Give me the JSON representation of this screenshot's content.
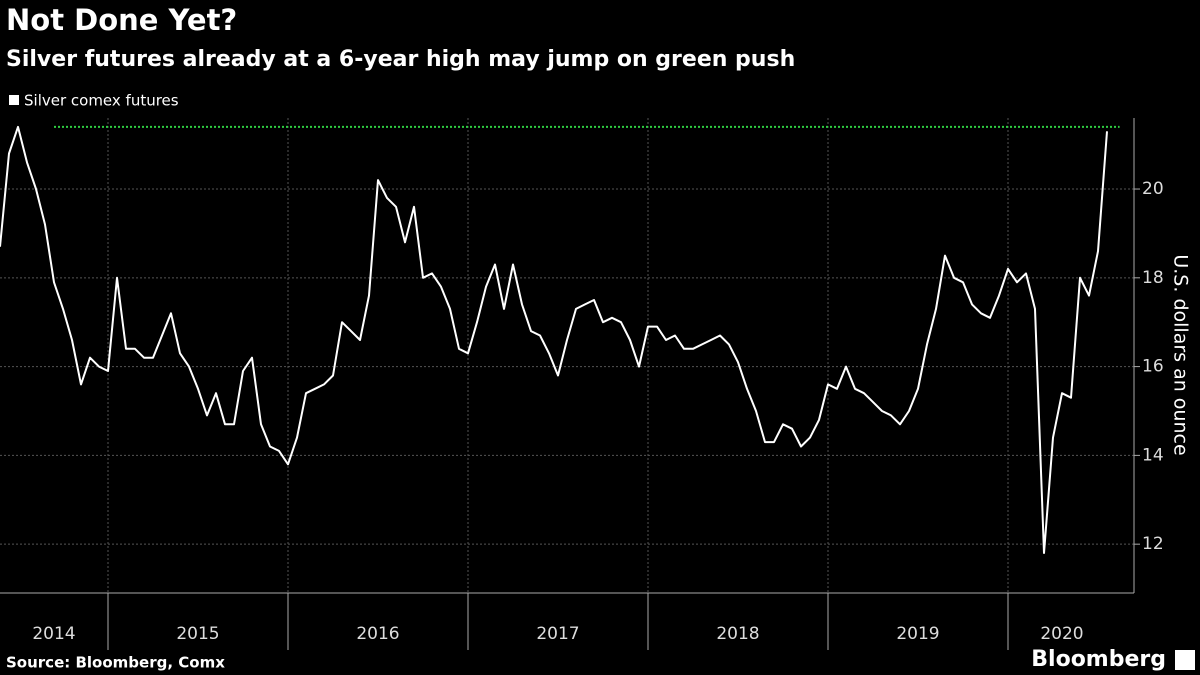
{
  "chart_data": {
    "type": "line",
    "title": "Not Done Yet?",
    "subtitle": "Silver futures already at a 6-year high may jump on green push",
    "y_axis_label": "U.S. dollars an ounce",
    "source": "Source: Bloomberg, Comx",
    "brand": "Bloomberg",
    "xlim": [
      2014.4,
      2020.7
    ],
    "xticks": [
      {
        "value": 2014.7,
        "label": "2014"
      },
      {
        "value": 2015.5,
        "label": "2015"
      },
      {
        "value": 2016.5,
        "label": "2016"
      },
      {
        "value": 2017.5,
        "label": "2017"
      },
      {
        "value": 2018.5,
        "label": "2018"
      },
      {
        "value": 2019.5,
        "label": "2019"
      },
      {
        "value": 2020.3,
        "label": "2020"
      }
    ],
    "xgrid": [
      2015,
      2016,
      2017,
      2018,
      2019,
      2020
    ],
    "ylim": [
      10.9,
      21.6
    ],
    "yticks": [
      12,
      14,
      16,
      18,
      20
    ],
    "grid": true,
    "legend": "top-left",
    "reference_line": {
      "value": 21.4,
      "x": [
        2014.7,
        2020.62
      ],
      "color": "#2ecc40"
    },
    "x": [
      2014.4,
      2014.45,
      2014.5,
      2014.55,
      2014.6,
      2014.65,
      2014.7,
      2014.75,
      2014.8,
      2014.85,
      2014.9,
      2014.95,
      2015.0,
      2015.05,
      2015.1,
      2015.15,
      2015.2,
      2015.25,
      2015.3,
      2015.35,
      2015.4,
      2015.45,
      2015.5,
      2015.55,
      2015.6,
      2015.65,
      2015.7,
      2015.75,
      2015.8,
      2015.85,
      2015.9,
      2015.95,
      2016.0,
      2016.05,
      2016.1,
      2016.15,
      2016.2,
      2016.25,
      2016.3,
      2016.35,
      2016.4,
      2016.45,
      2016.5,
      2016.55,
      2016.6,
      2016.65,
      2016.7,
      2016.75,
      2016.8,
      2016.85,
      2016.9,
      2016.95,
      2017.0,
      2017.05,
      2017.1,
      2017.15,
      2017.2,
      2017.25,
      2017.3,
      2017.35,
      2017.4,
      2017.45,
      2017.5,
      2017.55,
      2017.6,
      2017.65,
      2017.7,
      2017.75,
      2017.8,
      2017.85,
      2017.9,
      2017.95,
      2018.0,
      2018.05,
      2018.1,
      2018.15,
      2018.2,
      2018.25,
      2018.3,
      2018.35,
      2018.4,
      2018.45,
      2018.5,
      2018.55,
      2018.6,
      2018.65,
      2018.7,
      2018.75,
      2018.8,
      2018.85,
      2018.9,
      2018.95,
      2019.0,
      2019.05,
      2019.1,
      2019.15,
      2019.2,
      2019.25,
      2019.3,
      2019.35,
      2019.4,
      2019.45,
      2019.5,
      2019.55,
      2019.6,
      2019.65,
      2019.7,
      2019.75,
      2019.8,
      2019.85,
      2019.9,
      2019.95,
      2020.0,
      2020.05,
      2020.1,
      2020.15,
      2020.2,
      2020.25,
      2020.3,
      2020.35,
      2020.4,
      2020.45,
      2020.5,
      2020.55
    ],
    "series": [
      {
        "name": "Silver comex futures",
        "color": "#ffffff",
        "values": [
          18.7,
          20.8,
          21.4,
          20.6,
          20.0,
          19.2,
          17.9,
          17.3,
          16.6,
          15.6,
          16.2,
          16.0,
          15.9,
          18.0,
          16.4,
          16.4,
          16.2,
          16.2,
          16.7,
          17.2,
          16.3,
          16.0,
          15.5,
          14.9,
          15.4,
          14.7,
          14.7,
          15.9,
          16.2,
          14.7,
          14.2,
          14.1,
          13.8,
          14.4,
          15.4,
          15.5,
          15.6,
          15.8,
          17.0,
          16.8,
          16.6,
          17.6,
          20.2,
          19.8,
          19.6,
          18.8,
          19.6,
          18.0,
          18.1,
          17.8,
          17.3,
          16.4,
          16.3,
          17.0,
          17.8,
          18.3,
          17.3,
          18.3,
          17.4,
          16.8,
          16.7,
          16.3,
          15.8,
          16.6,
          17.3,
          17.4,
          17.5,
          17.0,
          17.1,
          17.0,
          16.6,
          16.0,
          16.9,
          16.9,
          16.6,
          16.7,
          16.4,
          16.4,
          16.5,
          16.6,
          16.7,
          16.5,
          16.1,
          15.5,
          15.0,
          14.3,
          14.3,
          14.7,
          14.6,
          14.2,
          14.4,
          14.8,
          15.6,
          15.5,
          16.0,
          15.5,
          15.4,
          15.2,
          15.0,
          14.9,
          14.7,
          15.0,
          15.5,
          16.5,
          17.3,
          18.5,
          18.0,
          17.9,
          17.4,
          17.2,
          17.1,
          17.6,
          18.2,
          17.9,
          18.1,
          17.3,
          11.8,
          14.4,
          15.4,
          15.3,
          18.0,
          17.6,
          18.6,
          21.3
        ]
      }
    ]
  }
}
